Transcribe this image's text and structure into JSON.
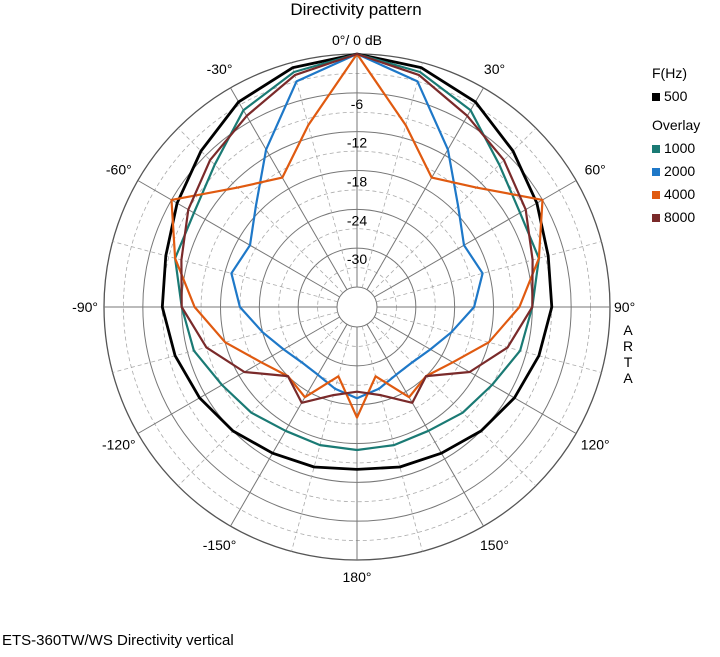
{
  "chart_data": {
    "type": "polar-line",
    "title": "Directivity pattern",
    "caption": "ETS-360TW/WS  Directivity vertical",
    "watermark": "ARTA",
    "angle_labels": [
      {
        "angle": 0,
        "text": "0°/ 0 dB"
      },
      {
        "angle": 30,
        "text": "30°"
      },
      {
        "angle": 60,
        "text": "60°"
      },
      {
        "angle": 90,
        "text": "90°"
      },
      {
        "angle": 120,
        "text": "120°"
      },
      {
        "angle": 150,
        "text": "150°"
      },
      {
        "angle": 180,
        "text": "180°"
      },
      {
        "angle": -150,
        "text": "-150°"
      },
      {
        "angle": -120,
        "text": "-120°"
      },
      {
        "angle": -90,
        "text": "-90°"
      },
      {
        "angle": -60,
        "text": "-60°"
      },
      {
        "angle": -30,
        "text": "-30°"
      }
    ],
    "radial_ticks": [
      -6,
      -12,
      -18,
      -24,
      -30
    ],
    "radial_range_db": [
      -36,
      0
    ],
    "legend": {
      "header": "F(Hz)",
      "overlay_header": "Overlay",
      "placement": "right"
    },
    "series": [
      {
        "name": "500",
        "color": "#000000",
        "role": "main",
        "angles": [
          0,
          15,
          30,
          45,
          60,
          75,
          90,
          105,
          120,
          135,
          150,
          165,
          180
        ],
        "values": [
          0,
          -0.8,
          -2.5,
          -5,
          -7,
          -8.5,
          -9,
          -10,
          -11,
          -12,
          -13,
          -13.5,
          -14
        ]
      },
      {
        "name": "1000",
        "color": "#1a7a74",
        "role": "overlay",
        "angles": [
          0,
          15,
          30,
          45,
          60,
          75,
          90,
          105,
          120,
          135,
          150,
          165,
          180
        ],
        "values": [
          0,
          -1.5,
          -4,
          -8,
          -10,
          -10,
          -12,
          -13,
          -15,
          -16,
          -17,
          -17,
          -17
        ]
      },
      {
        "name": "2000",
        "color": "#1e78c8",
        "role": "overlay",
        "angles": [
          0,
          15,
          30,
          45,
          60,
          75,
          90,
          105,
          120,
          135,
          150,
          165,
          180
        ],
        "values": [
          0,
          -3,
          -11,
          -17,
          -20,
          -19,
          -21,
          -24,
          -26,
          -27,
          -27,
          -26,
          -25
        ]
      },
      {
        "name": "4000",
        "color": "#e05a10",
        "role": "overlay",
        "angles": [
          0,
          15,
          30,
          45,
          60,
          75,
          90,
          105,
          120,
          135,
          150,
          165,
          180
        ],
        "values": [
          0,
          -10,
          -16,
          -13,
          -6,
          -10,
          -14,
          -18,
          -22,
          -24,
          -23,
          -28,
          -22
        ]
      },
      {
        "name": "8000",
        "color": "#7a2a2a",
        "role": "overlay",
        "angles": [
          0,
          15,
          30,
          45,
          60,
          75,
          90,
          105,
          120,
          135,
          150,
          165,
          180
        ],
        "values": [
          0,
          -2,
          -5,
          -7,
          -9,
          -11,
          -12,
          -15,
          -19,
          -24,
          -22,
          -25,
          -26
        ]
      }
    ]
  }
}
